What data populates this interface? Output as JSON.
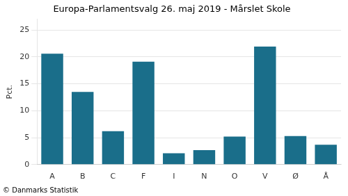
{
  "chart_data": {
    "type": "bar",
    "title": "Europa-Parlamentsvalg 26. maj 2019 - Mårslet Skole",
    "categories": [
      "A",
      "B",
      "C",
      "F",
      "I",
      "N",
      "O",
      "V",
      "Ø",
      "Å"
    ],
    "values": [
      20.6,
      13.5,
      6.2,
      19.1,
      2.1,
      2.7,
      5.2,
      21.9,
      5.3,
      3.7
    ],
    "color": "#1a6e8a",
    "ylabel": "Pct.",
    "footer": "© Danmarks Statistik",
    "ylim": [
      0,
      27
    ],
    "yticks": [
      0,
      5,
      10,
      15,
      20,
      25
    ],
    "grid": true
  }
}
